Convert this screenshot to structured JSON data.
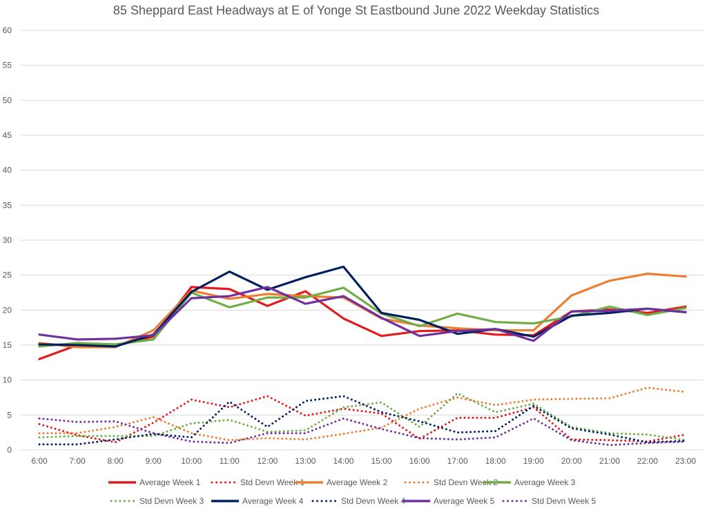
{
  "chart_data": {
    "type": "line",
    "title": "85 Sheppard East Headways at E of Yonge St Eastbound June 2022 Weekday Statistics",
    "xlabel": "",
    "ylabel": "",
    "ylim": [
      0,
      60
    ],
    "yticks": [
      0,
      5,
      10,
      15,
      20,
      25,
      30,
      35,
      40,
      45,
      50,
      55,
      60
    ],
    "grid": true,
    "legend_position": "bottom",
    "categories": [
      "6:00",
      "7:00",
      "8:00",
      "9:00",
      "10:00",
      "11:00",
      "12:00",
      "13:00",
      "14:00",
      "15:00",
      "16:00",
      "17:00",
      "18:00",
      "19:00",
      "20:00",
      "21:00",
      "22:00",
      "23:00"
    ],
    "series": [
      {
        "name": "Average Week 1",
        "style": "solid",
        "color": "#e31a1c",
        "values": [
          13.0,
          15.0,
          14.9,
          16.2,
          23.3,
          23.0,
          20.6,
          22.7,
          18.8,
          16.3,
          17.0,
          17.1,
          16.5,
          16.4,
          19.8,
          20.1,
          19.6,
          20.5
        ]
      },
      {
        "name": "Std Devn Week 1",
        "style": "dotted",
        "color": "#e31a1c",
        "values": [
          3.7,
          2.1,
          1.1,
          3.9,
          7.2,
          6.1,
          7.7,
          4.9,
          5.9,
          5.2,
          1.6,
          4.6,
          4.6,
          6.1,
          1.5,
          1.4,
          1.2,
          2.2
        ]
      },
      {
        "name": "Average Week 2",
        "style": "solid",
        "color": "#ed7d31",
        "values": [
          15.3,
          14.7,
          14.7,
          17.1,
          22.8,
          21.6,
          22.3,
          22.0,
          21.8,
          18.8,
          17.8,
          17.4,
          17.1,
          17.1,
          22.1,
          24.2,
          25.2,
          24.8
        ]
      },
      {
        "name": "Std Devn Week 2",
        "style": "dotted",
        "color": "#ed7d31",
        "values": [
          2.4,
          2.4,
          3.3,
          4.7,
          2.4,
          1.4,
          1.7,
          1.5,
          2.3,
          3.2,
          5.9,
          7.5,
          6.4,
          7.2,
          7.3,
          7.4,
          8.9,
          8.3
        ]
      },
      {
        "name": "Average Week 3",
        "style": "solid",
        "color": "#70ad47",
        "values": [
          14.8,
          15.3,
          15.1,
          15.8,
          22.5,
          20.4,
          21.8,
          21.8,
          23.2,
          19.5,
          17.7,
          19.5,
          18.3,
          18.1,
          19.1,
          20.5,
          19.3,
          20.3
        ]
      },
      {
        "name": "Std Devn Week 3",
        "style": "dotted",
        "color": "#70ad47",
        "values": [
          1.8,
          2.0,
          2.0,
          2.0,
          3.8,
          4.3,
          2.6,
          2.8,
          6.1,
          6.8,
          3.3,
          8.1,
          5.4,
          6.6,
          3.3,
          2.4,
          2.2,
          1.4
        ]
      },
      {
        "name": "Average Week 4",
        "style": "solid",
        "color": "#002060",
        "values": [
          15.1,
          15.0,
          14.8,
          16.5,
          22.6,
          25.5,
          22.9,
          24.7,
          26.2,
          19.6,
          18.6,
          16.6,
          17.3,
          16.2,
          19.2,
          19.6,
          20.2,
          19.7
        ]
      },
      {
        "name": "Std Devn Week 4",
        "style": "dotted",
        "color": "#002060",
        "values": [
          0.8,
          0.8,
          1.5,
          2.3,
          1.8,
          6.9,
          3.3,
          7.0,
          7.7,
          5.4,
          4.1,
          2.5,
          2.7,
          6.3,
          3.1,
          2.2,
          1.1,
          1.3
        ]
      },
      {
        "name": "Average Week 5",
        "style": "solid",
        "color": "#7030a0",
        "values": [
          16.5,
          15.8,
          15.9,
          16.4,
          21.7,
          22.0,
          23.3,
          20.9,
          22.0,
          18.9,
          16.3,
          17.0,
          17.3,
          15.6,
          19.8,
          19.9,
          20.2,
          19.7
        ]
      },
      {
        "name": "Std Devn Week 5",
        "style": "dotted",
        "color": "#7030a0",
        "values": [
          4.5,
          4.0,
          4.1,
          2.4,
          1.2,
          1.0,
          2.4,
          2.4,
          4.5,
          3.0,
          1.7,
          1.5,
          1.8,
          4.5,
          1.4,
          0.7,
          1.0,
          1.2
        ]
      }
    ]
  }
}
